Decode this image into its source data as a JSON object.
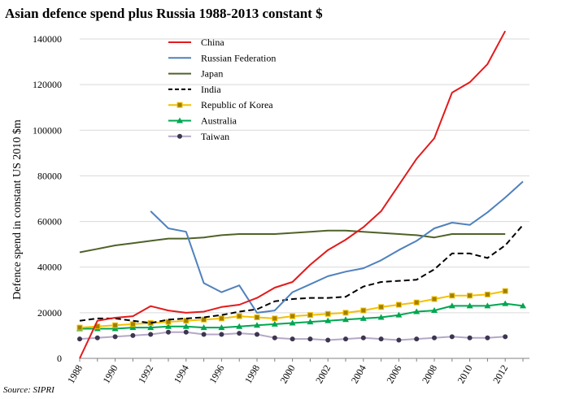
{
  "chart_data": {
    "type": "line",
    "title": "Asian defence spend plus Russia 1988-2013 constant $",
    "xlabel": "",
    "ylabel": "Defence spend in constant US 2010 $m",
    "source": "Source: SIPRI",
    "xlim": [
      1988,
      2013
    ],
    "ylim": [
      0,
      140000
    ],
    "yticks": [
      0,
      20000,
      40000,
      60000,
      80000,
      100000,
      120000,
      140000
    ],
    "ytick_labels": [
      "0",
      "20000",
      "40000",
      "60000",
      "80000",
      "100000",
      "120000",
      "140000"
    ],
    "xticks": [
      1988,
      1990,
      1992,
      1994,
      1996,
      1998,
      2000,
      2002,
      2004,
      2006,
      2008,
      2010,
      2012
    ],
    "xtick_labels": [
      "1988",
      "1990",
      "1992",
      "1994",
      "1996",
      "1998",
      "2000",
      "2002",
      "2004",
      "2006",
      "2008",
      "2010",
      "2012"
    ],
    "x": [
      1988,
      1989,
      1990,
      1991,
      1992,
      1993,
      1994,
      1995,
      1996,
      1997,
      1998,
      1999,
      2000,
      2001,
      2002,
      2003,
      2004,
      2005,
      2006,
      2007,
      2008,
      2009,
      2010,
      2011,
      2012,
      2013
    ],
    "series": [
      {
        "name": "China",
        "color": "#e31a1c",
        "dash": "",
        "marker": "none",
        "values": [
          0,
          16500,
          17800,
          18500,
          22900,
          21000,
          20000,
          20500,
          22500,
          23500,
          26500,
          31000,
          33500,
          41000,
          47500,
          52000,
          57500,
          64500,
          76000,
          87500,
          96500,
          116500,
          121000,
          129000,
          143500,
          null
        ]
      },
      {
        "name": "Russian Federation",
        "color": "#4f81bd",
        "dash": "",
        "marker": "none",
        "values": [
          null,
          null,
          null,
          null,
          64500,
          57000,
          55500,
          33000,
          29000,
          32000,
          20000,
          21000,
          29000,
          32500,
          36000,
          38000,
          39500,
          43000,
          47500,
          51500,
          57000,
          59500,
          58500,
          64000,
          70500,
          77500
        ]
      },
      {
        "name": "Japan",
        "color": "#4f6228",
        "dash": "",
        "marker": "none",
        "values": [
          46500,
          48000,
          49500,
          50500,
          51500,
          52500,
          52500,
          53000,
          54000,
          54500,
          54500,
          54500,
          55000,
          55500,
          56000,
          56000,
          55500,
          55000,
          54500,
          54000,
          53000,
          54500,
          54500,
          54500,
          54500,
          null
        ]
      },
      {
        "name": "India",
        "color": "#000000",
        "dash": "7,4",
        "marker": "none",
        "values": [
          16500,
          17500,
          17500,
          16500,
          15500,
          17000,
          17500,
          18000,
          19000,
          20500,
          21500,
          25000,
          26000,
          26500,
          26500,
          27000,
          31500,
          33500,
          34000,
          34500,
          39000,
          46000,
          46000,
          44000,
          49500,
          58500
        ]
      },
      {
        "name": "Republic of Korea",
        "color": "#f5c000",
        "dash": "",
        "marker": "square",
        "values": [
          13500,
          14000,
          14500,
          15000,
          15500,
          16000,
          16500,
          17000,
          17500,
          18500,
          18000,
          17500,
          18500,
          19000,
          19500,
          20000,
          21000,
          22500,
          23500,
          24500,
          26000,
          27500,
          27500,
          28000,
          29500,
          null
        ]
      },
      {
        "name": "Australia",
        "color": "#00a651",
        "dash": "",
        "marker": "triangle",
        "values": [
          13000,
          13000,
          13000,
          13500,
          13500,
          14000,
          14000,
          13500,
          13500,
          14000,
          14500,
          15000,
          15500,
          16000,
          16500,
          17000,
          17500,
          18000,
          19000,
          20500,
          21000,
          23000,
          23000,
          23000,
          24000,
          23000
        ]
      },
      {
        "name": "Taiwan",
        "color": "#b4a7c7",
        "dash": "",
        "marker": "circle",
        "marker_color": "#3d3550",
        "values": [
          8500,
          9000,
          9500,
          10000,
          10500,
          11500,
          11500,
          10500,
          10500,
          11000,
          10500,
          9000,
          8500,
          8500,
          8000,
          8500,
          9000,
          8500,
          8000,
          8500,
          9000,
          9500,
          9000,
          9000,
          9500,
          null
        ]
      }
    ]
  }
}
